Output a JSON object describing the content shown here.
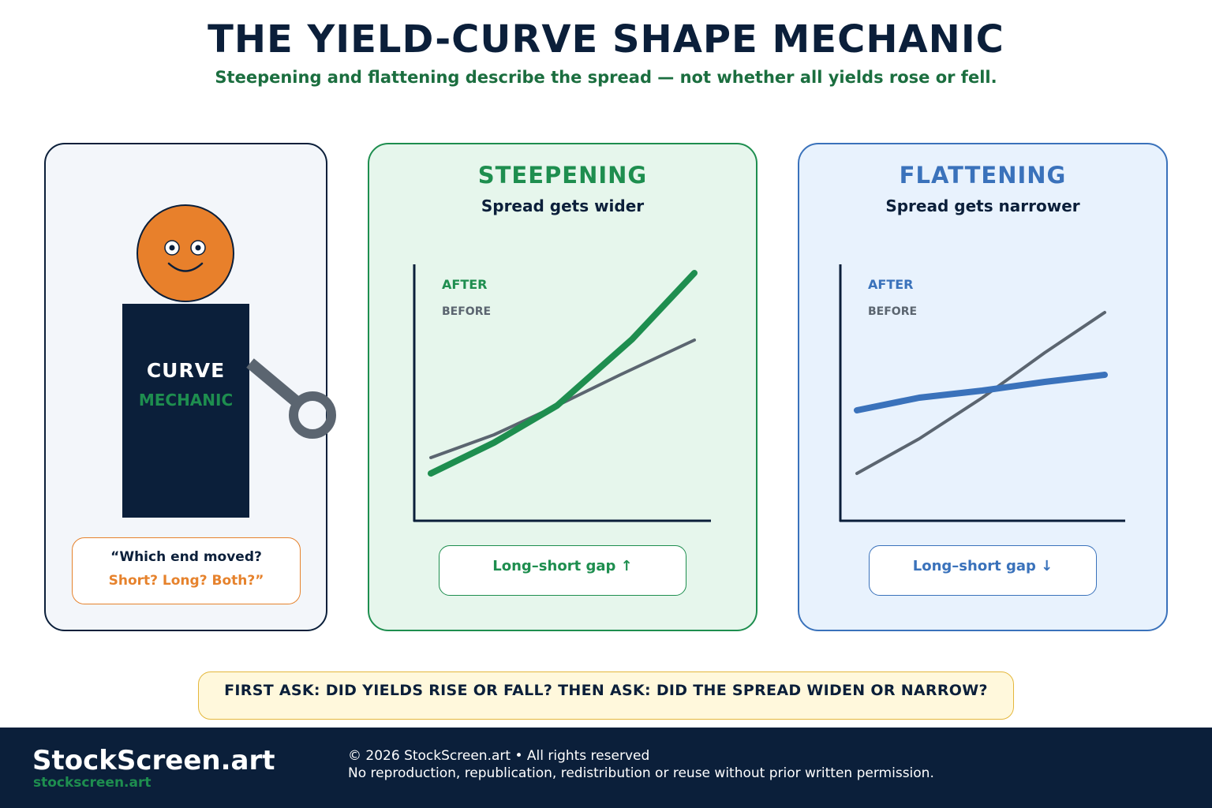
{
  "header": {
    "title": "THE YIELD-CURVE SHAPE MECHANIC",
    "subtitle": "Steepening and flattening describe the spread — not whether all yields rose or fell."
  },
  "mechanic": {
    "shirt_line1": "CURVE",
    "shirt_line2": "MECHANIC",
    "bubble_line1": "“Which end moved?",
    "bubble_line2": "Short? Long? Both?”"
  },
  "steepening": {
    "title": "STEEPENING",
    "subtitle": "Spread gets wider",
    "legend_after": "AFTER",
    "legend_before": "BEFORE",
    "chip": "Long–short gap ↑",
    "color": "#1e8e4f"
  },
  "flattening": {
    "title": "FLATTENING",
    "subtitle": "Spread gets narrower",
    "legend_after": "AFTER",
    "legend_before": "BEFORE",
    "chip": "Long–short gap ↓",
    "color": "#3a72bb"
  },
  "banner": "FIRST ASK: DID YIELDS RISE OR FALL? THEN ASK: DID THE SPREAD WIDEN OR NARROW?",
  "footer": {
    "brand": "StockScreen.art",
    "url": "stockscreen.art",
    "copyright": "© 2026 StockScreen.art • All rights reserved",
    "notice": "No reproduction, republication, redistribution or reuse without prior written permission."
  },
  "colors": {
    "navy": "#0b1f3a",
    "green": "#1e8e4f",
    "blue": "#3a72bb",
    "orange": "#e6822c",
    "gray": "#5b6570"
  }
}
